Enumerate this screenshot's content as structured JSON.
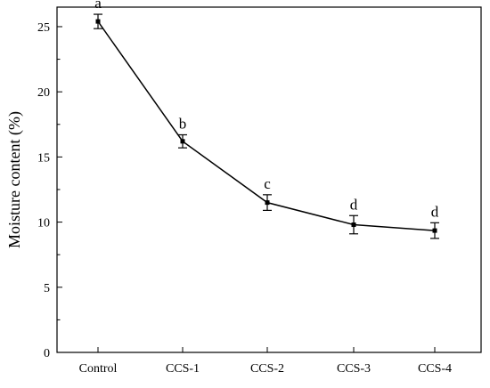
{
  "chart_data": {
    "type": "line",
    "title": "",
    "xlabel": "",
    "ylabel": "Moisture content (%)",
    "categories": [
      "Control",
      "CCS-1",
      "CCS-2",
      "CCS-3",
      "CCS-4"
    ],
    "ylim": [
      0,
      26.5
    ],
    "yticks": [
      0,
      5,
      10,
      15,
      20,
      25
    ],
    "y_minor_step": 2.5,
    "grid": false,
    "legend": "none",
    "series": [
      {
        "values": [
          25.4,
          16.2,
          11.5,
          9.8,
          9.35
        ],
        "errors": [
          0.55,
          0.5,
          0.6,
          0.7,
          0.6
        ],
        "labels": [
          "a",
          "b",
          "c",
          "d",
          "d"
        ],
        "color": "#000000"
      }
    ]
  }
}
